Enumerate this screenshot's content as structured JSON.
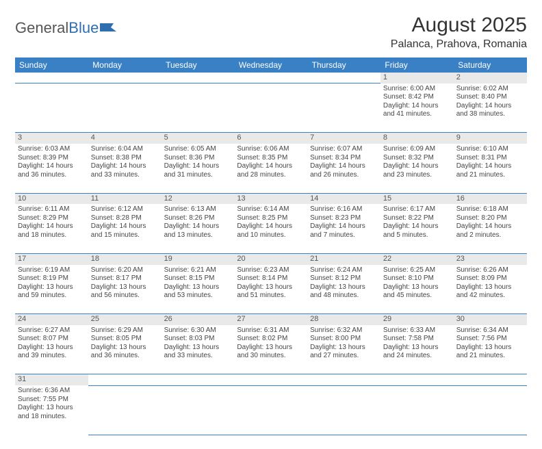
{
  "logo": {
    "text1": "General",
    "text2": "Blue"
  },
  "title": "August 2025",
  "location": "Palanca, Prahova, Romania",
  "colors": {
    "header_bg": "#3a80c4",
    "header_text": "#ffffff",
    "daynum_bg": "#e9e9e9",
    "border": "#3a80c4",
    "body_text": "#444444",
    "logo_blue": "#2f6fb0"
  },
  "dayHeaders": [
    "Sunday",
    "Monday",
    "Tuesday",
    "Wednesday",
    "Thursday",
    "Friday",
    "Saturday"
  ],
  "weeks": [
    [
      null,
      null,
      null,
      null,
      null,
      {
        "n": "1",
        "sr": "6:00 AM",
        "ss": "8:42 PM",
        "dl": "14 hours and 41 minutes."
      },
      {
        "n": "2",
        "sr": "6:02 AM",
        "ss": "8:40 PM",
        "dl": "14 hours and 38 minutes."
      }
    ],
    [
      {
        "n": "3",
        "sr": "6:03 AM",
        "ss": "8:39 PM",
        "dl": "14 hours and 36 minutes."
      },
      {
        "n": "4",
        "sr": "6:04 AM",
        "ss": "8:38 PM",
        "dl": "14 hours and 33 minutes."
      },
      {
        "n": "5",
        "sr": "6:05 AM",
        "ss": "8:36 PM",
        "dl": "14 hours and 31 minutes."
      },
      {
        "n": "6",
        "sr": "6:06 AM",
        "ss": "8:35 PM",
        "dl": "14 hours and 28 minutes."
      },
      {
        "n": "7",
        "sr": "6:07 AM",
        "ss": "8:34 PM",
        "dl": "14 hours and 26 minutes."
      },
      {
        "n": "8",
        "sr": "6:09 AM",
        "ss": "8:32 PM",
        "dl": "14 hours and 23 minutes."
      },
      {
        "n": "9",
        "sr": "6:10 AM",
        "ss": "8:31 PM",
        "dl": "14 hours and 21 minutes."
      }
    ],
    [
      {
        "n": "10",
        "sr": "6:11 AM",
        "ss": "8:29 PM",
        "dl": "14 hours and 18 minutes."
      },
      {
        "n": "11",
        "sr": "6:12 AM",
        "ss": "8:28 PM",
        "dl": "14 hours and 15 minutes."
      },
      {
        "n": "12",
        "sr": "6:13 AM",
        "ss": "8:26 PM",
        "dl": "14 hours and 13 minutes."
      },
      {
        "n": "13",
        "sr": "6:14 AM",
        "ss": "8:25 PM",
        "dl": "14 hours and 10 minutes."
      },
      {
        "n": "14",
        "sr": "6:16 AM",
        "ss": "8:23 PM",
        "dl": "14 hours and 7 minutes."
      },
      {
        "n": "15",
        "sr": "6:17 AM",
        "ss": "8:22 PM",
        "dl": "14 hours and 5 minutes."
      },
      {
        "n": "16",
        "sr": "6:18 AM",
        "ss": "8:20 PM",
        "dl": "14 hours and 2 minutes."
      }
    ],
    [
      {
        "n": "17",
        "sr": "6:19 AM",
        "ss": "8:19 PM",
        "dl": "13 hours and 59 minutes."
      },
      {
        "n": "18",
        "sr": "6:20 AM",
        "ss": "8:17 PM",
        "dl": "13 hours and 56 minutes."
      },
      {
        "n": "19",
        "sr": "6:21 AM",
        "ss": "8:15 PM",
        "dl": "13 hours and 53 minutes."
      },
      {
        "n": "20",
        "sr": "6:23 AM",
        "ss": "8:14 PM",
        "dl": "13 hours and 51 minutes."
      },
      {
        "n": "21",
        "sr": "6:24 AM",
        "ss": "8:12 PM",
        "dl": "13 hours and 48 minutes."
      },
      {
        "n": "22",
        "sr": "6:25 AM",
        "ss": "8:10 PM",
        "dl": "13 hours and 45 minutes."
      },
      {
        "n": "23",
        "sr": "6:26 AM",
        "ss": "8:09 PM",
        "dl": "13 hours and 42 minutes."
      }
    ],
    [
      {
        "n": "24",
        "sr": "6:27 AM",
        "ss": "8:07 PM",
        "dl": "13 hours and 39 minutes."
      },
      {
        "n": "25",
        "sr": "6:29 AM",
        "ss": "8:05 PM",
        "dl": "13 hours and 36 minutes."
      },
      {
        "n": "26",
        "sr": "6:30 AM",
        "ss": "8:03 PM",
        "dl": "13 hours and 33 minutes."
      },
      {
        "n": "27",
        "sr": "6:31 AM",
        "ss": "8:02 PM",
        "dl": "13 hours and 30 minutes."
      },
      {
        "n": "28",
        "sr": "6:32 AM",
        "ss": "8:00 PM",
        "dl": "13 hours and 27 minutes."
      },
      {
        "n": "29",
        "sr": "6:33 AM",
        "ss": "7:58 PM",
        "dl": "13 hours and 24 minutes."
      },
      {
        "n": "30",
        "sr": "6:34 AM",
        "ss": "7:56 PM",
        "dl": "13 hours and 21 minutes."
      }
    ],
    [
      {
        "n": "31",
        "sr": "6:36 AM",
        "ss": "7:55 PM",
        "dl": "13 hours and 18 minutes."
      },
      null,
      null,
      null,
      null,
      null,
      null
    ]
  ],
  "labels": {
    "sunrise": "Sunrise:",
    "sunset": "Sunset:",
    "daylight": "Daylight:"
  }
}
